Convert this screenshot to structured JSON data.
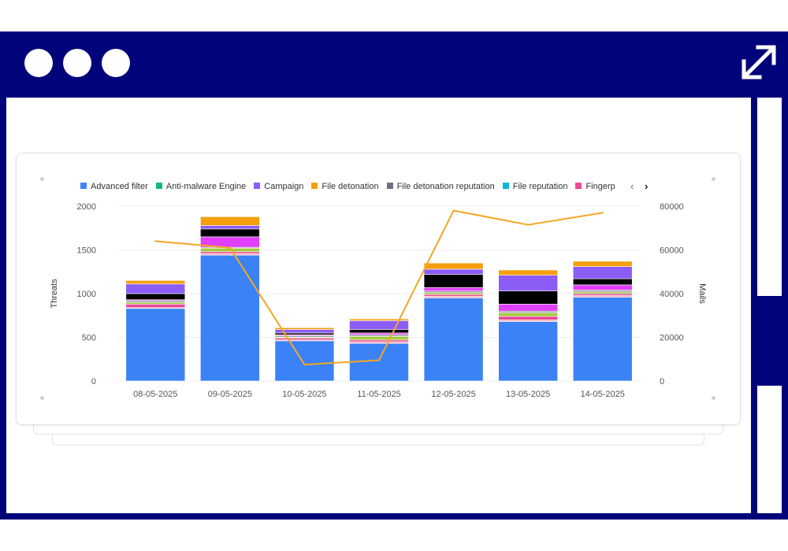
{
  "window": {
    "controls": [
      "dot",
      "dot",
      "dot"
    ],
    "expand_icon": "expand-arrows-icon",
    "frame_color": "#00037a"
  },
  "legend": {
    "items": [
      {
        "label": "Advanced filter",
        "color": "#3b82f6"
      },
      {
        "label": "Anti-malware Engine",
        "color": "#10b981"
      },
      {
        "label": "Campaign",
        "color": "#8b5cf6"
      },
      {
        "label": "File detonation",
        "color": "#f59e0b"
      },
      {
        "label": "File detonation reputation",
        "color": "#6b7280"
      },
      {
        "label": "File reputation",
        "color": "#06b6d4"
      },
      {
        "label": "Fingerp",
        "color": "#ec4899"
      }
    ],
    "prev_icon": "chevron-left-icon",
    "next_icon": "chevron-right-icon",
    "prev_glyph": "‹",
    "next_glyph": "›"
  },
  "chart_data": {
    "type": "bar",
    "stacked": true,
    "categories": [
      "08-05-2025",
      "09-05-2025",
      "10-05-2025",
      "11-05-2025",
      "12-05-2025",
      "13-05-2025",
      "14-05-2025"
    ],
    "ylabel": "Threats",
    "y2label": "Mails",
    "ylim": [
      0,
      2000
    ],
    "y2lim": [
      0,
      80000
    ],
    "yticks": [
      0,
      500,
      1000,
      1500,
      2000
    ],
    "y2ticks": [
      0,
      20000,
      40000,
      60000,
      80000
    ],
    "grid": true,
    "legend_position": "top",
    "series": [
      {
        "name": "Advanced filter",
        "color": "#3b82f6",
        "values": [
          830,
          1440,
          460,
          430,
          950,
          680,
          960
        ]
      },
      {
        "name": "",
        "color": "#f9a8b4",
        "values": [
          10,
          20,
          10,
          20,
          20,
          20,
          20
        ]
      },
      {
        "name": "Fingerp",
        "color": "#ec4899",
        "values": [
          40,
          20,
          20,
          20,
          20,
          40,
          20
        ]
      },
      {
        "name": "",
        "color": "#a3c93a",
        "values": [
          20,
          40,
          10,
          40,
          20,
          40,
          20
        ]
      },
      {
        "name": "",
        "color": "#9aa0a6",
        "values": [
          20,
          10,
          20,
          20,
          20,
          20,
          20
        ]
      },
      {
        "name": "",
        "color": "#e040fb",
        "values": [
          10,
          120,
          10,
          20,
          40,
          80,
          60
        ]
      },
      {
        "name": "",
        "color": "#000000",
        "values": [
          70,
          90,
          20,
          40,
          150,
          150,
          70
        ]
      },
      {
        "name": "Campaign",
        "color": "#8b5cf6",
        "values": [
          110,
          40,
          40,
          100,
          60,
          180,
          140
        ]
      },
      {
        "name": "File detonation",
        "color": "#f59e0b",
        "values": [
          40,
          100,
          20,
          20,
          70,
          60,
          60
        ]
      }
    ],
    "line": {
      "name": "Mails",
      "color": "#f5a623",
      "axis": "right",
      "values": [
        64000,
        61000,
        7500,
        9500,
        78000,
        71500,
        77000
      ]
    }
  }
}
